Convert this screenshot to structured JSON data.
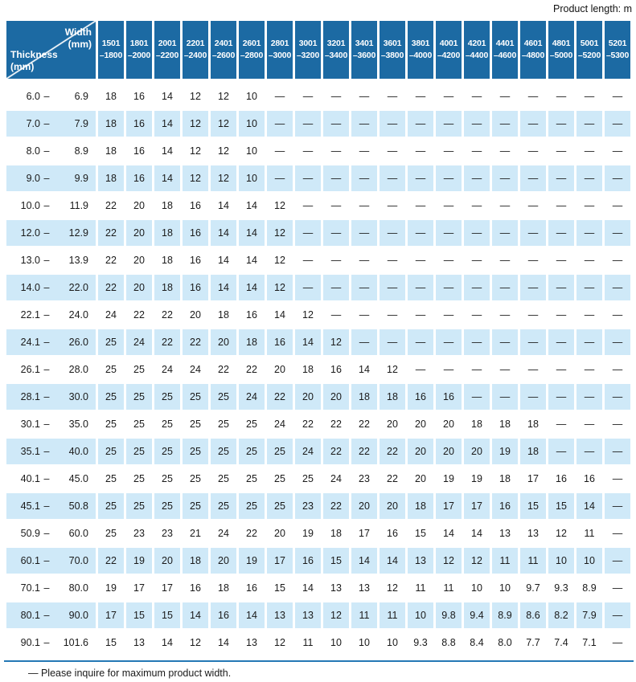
{
  "note_top": "Product length: m",
  "footer_note": "— Please inquire for maximum product width.",
  "colors": {
    "header_bg": "#1c6aa3",
    "header_text": "#ffffff",
    "alt_row_bg": "#cfe9f8",
    "rule_color": "#2478b5",
    "body_text": "#1a1a1a"
  },
  "table": {
    "corner": {
      "width_label": "Width\n(mm)",
      "thickness_label": "Thickness\n(mm)"
    },
    "range_separator": "–",
    "columns": [
      {
        "from": "1501",
        "to": "–1800"
      },
      {
        "from": "1801",
        "to": "–2000"
      },
      {
        "from": "2001",
        "to": "–2200"
      },
      {
        "from": "2201",
        "to": "–2400"
      },
      {
        "from": "2401",
        "to": "–2600"
      },
      {
        "from": "2601",
        "to": "–2800"
      },
      {
        "from": "2801",
        "to": "–3000"
      },
      {
        "from": "3001",
        "to": "–3200"
      },
      {
        "from": "3201",
        "to": "–3400"
      },
      {
        "from": "3401",
        "to": "–3600"
      },
      {
        "from": "3601",
        "to": "–3800"
      },
      {
        "from": "3801",
        "to": "–4000"
      },
      {
        "from": "4001",
        "to": "–4200"
      },
      {
        "from": "4201",
        "to": "–4400"
      },
      {
        "from": "4401",
        "to": "–4600"
      },
      {
        "from": "4601",
        "to": "–4800"
      },
      {
        "from": "4801",
        "to": "–5000"
      },
      {
        "from": "5001",
        "to": "–5200"
      },
      {
        "from": "5201",
        "to": "–5300"
      }
    ],
    "rows": [
      {
        "min": "6.0",
        "max": "6.9",
        "values": [
          "18",
          "16",
          "14",
          "12",
          "12",
          "10",
          "—",
          "—",
          "—",
          "—",
          "—",
          "—",
          "—",
          "—",
          "—",
          "—",
          "—",
          "—",
          "—"
        ]
      },
      {
        "min": "7.0",
        "max": "7.9",
        "values": [
          "18",
          "16",
          "14",
          "12",
          "12",
          "10",
          "—",
          "—",
          "—",
          "—",
          "—",
          "—",
          "—",
          "—",
          "—",
          "—",
          "—",
          "—",
          "—"
        ]
      },
      {
        "min": "8.0",
        "max": "8.9",
        "values": [
          "18",
          "16",
          "14",
          "12",
          "12",
          "10",
          "—",
          "—",
          "—",
          "—",
          "—",
          "—",
          "—",
          "—",
          "—",
          "—",
          "—",
          "—",
          "—"
        ]
      },
      {
        "min": "9.0",
        "max": "9.9",
        "values": [
          "18",
          "16",
          "14",
          "12",
          "12",
          "10",
          "—",
          "—",
          "—",
          "—",
          "—",
          "—",
          "—",
          "—",
          "—",
          "—",
          "—",
          "—",
          "—"
        ]
      },
      {
        "min": "10.0",
        "max": "11.9",
        "values": [
          "22",
          "20",
          "18",
          "16",
          "14",
          "14",
          "12",
          "—",
          "—",
          "—",
          "—",
          "—",
          "—",
          "—",
          "—",
          "—",
          "—",
          "—",
          "—"
        ]
      },
      {
        "min": "12.0",
        "max": "12.9",
        "values": [
          "22",
          "20",
          "18",
          "16",
          "14",
          "14",
          "12",
          "—",
          "—",
          "—",
          "—",
          "—",
          "—",
          "—",
          "—",
          "—",
          "—",
          "—",
          "—"
        ]
      },
      {
        "min": "13.0",
        "max": "13.9",
        "values": [
          "22",
          "20",
          "18",
          "16",
          "14",
          "14",
          "12",
          "—",
          "—",
          "—",
          "—",
          "—",
          "—",
          "—",
          "—",
          "—",
          "—",
          "—",
          "—"
        ]
      },
      {
        "min": "14.0",
        "max": "22.0",
        "values": [
          "22",
          "20",
          "18",
          "16",
          "14",
          "14",
          "12",
          "—",
          "—",
          "—",
          "—",
          "—",
          "—",
          "—",
          "—",
          "—",
          "—",
          "—",
          "—"
        ]
      },
      {
        "min": "22.1",
        "max": "24.0",
        "values": [
          "24",
          "22",
          "22",
          "20",
          "18",
          "16",
          "14",
          "12",
          "—",
          "—",
          "—",
          "—",
          "—",
          "—",
          "—",
          "—",
          "—",
          "—",
          "—"
        ]
      },
      {
        "min": "24.1",
        "max": "26.0",
        "values": [
          "25",
          "24",
          "22",
          "22",
          "20",
          "18",
          "16",
          "14",
          "12",
          "—",
          "—",
          "—",
          "—",
          "—",
          "—",
          "—",
          "—",
          "—",
          "—"
        ]
      },
      {
        "min": "26.1",
        "max": "28.0",
        "values": [
          "25",
          "25",
          "24",
          "24",
          "22",
          "22",
          "20",
          "18",
          "16",
          "14",
          "12",
          "—",
          "—",
          "—",
          "—",
          "—",
          "—",
          "—",
          "—"
        ]
      },
      {
        "min": "28.1",
        "max": "30.0",
        "values": [
          "25",
          "25",
          "25",
          "25",
          "25",
          "24",
          "22",
          "20",
          "20",
          "18",
          "18",
          "16",
          "16",
          "—",
          "—",
          "—",
          "—",
          "—",
          "—"
        ]
      },
      {
        "min": "30.1",
        "max": "35.0",
        "values": [
          "25",
          "25",
          "25",
          "25",
          "25",
          "25",
          "24",
          "22",
          "22",
          "22",
          "20",
          "20",
          "20",
          "18",
          "18",
          "18",
          "—",
          "—",
          "—"
        ]
      },
      {
        "min": "35.1",
        "max": "40.0",
        "values": [
          "25",
          "25",
          "25",
          "25",
          "25",
          "25",
          "25",
          "24",
          "22",
          "22",
          "22",
          "20",
          "20",
          "20",
          "19",
          "18",
          "—",
          "—",
          "—"
        ]
      },
      {
        "min": "40.1",
        "max": "45.0",
        "values": [
          "25",
          "25",
          "25",
          "25",
          "25",
          "25",
          "25",
          "25",
          "24",
          "23",
          "22",
          "20",
          "19",
          "19",
          "18",
          "17",
          "16",
          "16",
          "—"
        ]
      },
      {
        "min": "45.1",
        "max": "50.8",
        "values": [
          "25",
          "25",
          "25",
          "25",
          "25",
          "25",
          "25",
          "23",
          "22",
          "20",
          "20",
          "18",
          "17",
          "17",
          "16",
          "15",
          "15",
          "14",
          "—"
        ]
      },
      {
        "min": "50.9",
        "max": "60.0",
        "values": [
          "25",
          "23",
          "23",
          "21",
          "24",
          "22",
          "20",
          "19",
          "18",
          "17",
          "16",
          "15",
          "14",
          "14",
          "13",
          "13",
          "12",
          "11",
          "—"
        ]
      },
      {
        "min": "60.1",
        "max": "70.0",
        "values": [
          "22",
          "19",
          "20",
          "18",
          "20",
          "19",
          "17",
          "16",
          "15",
          "14",
          "14",
          "13",
          "12",
          "12",
          "11",
          "11",
          "10",
          "10",
          "—"
        ]
      },
      {
        "min": "70.1",
        "max": "80.0",
        "values": [
          "19",
          "17",
          "17",
          "16",
          "18",
          "16",
          "15",
          "14",
          "13",
          "13",
          "12",
          "11",
          "11",
          "10",
          "10",
          "9.7",
          "9.3",
          "8.9",
          "—"
        ]
      },
      {
        "min": "80.1",
        "max": "90.0",
        "values": [
          "17",
          "15",
          "15",
          "14",
          "16",
          "14",
          "13",
          "13",
          "12",
          "11",
          "11",
          "10",
          "9.8",
          "9.4",
          "8.9",
          "8.6",
          "8.2",
          "7.9",
          "—"
        ]
      },
      {
        "min": "90.1",
        "max": "101.6",
        "values": [
          "15",
          "13",
          "14",
          "12",
          "14",
          "13",
          "12",
          "11",
          "10",
          "10",
          "10",
          "9.3",
          "8.8",
          "8.4",
          "8.0",
          "7.7",
          "7.4",
          "7.1",
          "—"
        ]
      }
    ]
  }
}
